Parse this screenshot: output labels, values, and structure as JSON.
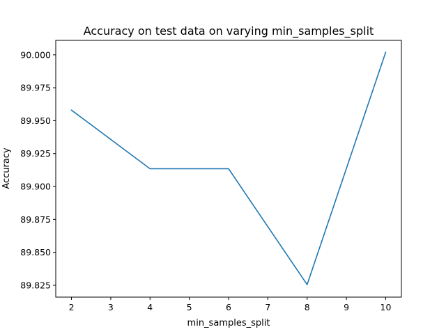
{
  "chart_data": {
    "type": "line",
    "title": "Accuracy on test data on varying min_samples_split",
    "xlabel": "min_samples_split",
    "ylabel": "Accuracy",
    "xlim": [
      1.6,
      10.4
    ],
    "ylim": [
      89.816,
      90.011
    ],
    "xticks": [
      2,
      3,
      4,
      5,
      6,
      7,
      8,
      9,
      10
    ],
    "yticks": [
      89.825,
      89.85,
      89.875,
      89.9,
      89.925,
      89.95,
      89.975,
      90.0
    ],
    "ytick_labels": [
      "89.825",
      "89.850",
      "89.875",
      "89.900",
      "89.925",
      "89.950",
      "89.975",
      "90.000"
    ],
    "grid": false,
    "series": [
      {
        "color": "#1f77b4",
        "x": [
          2,
          4,
          6,
          8,
          10
        ],
        "y": [
          89.958,
          89.9135,
          89.9135,
          89.8255,
          90.002
        ]
      }
    ]
  }
}
